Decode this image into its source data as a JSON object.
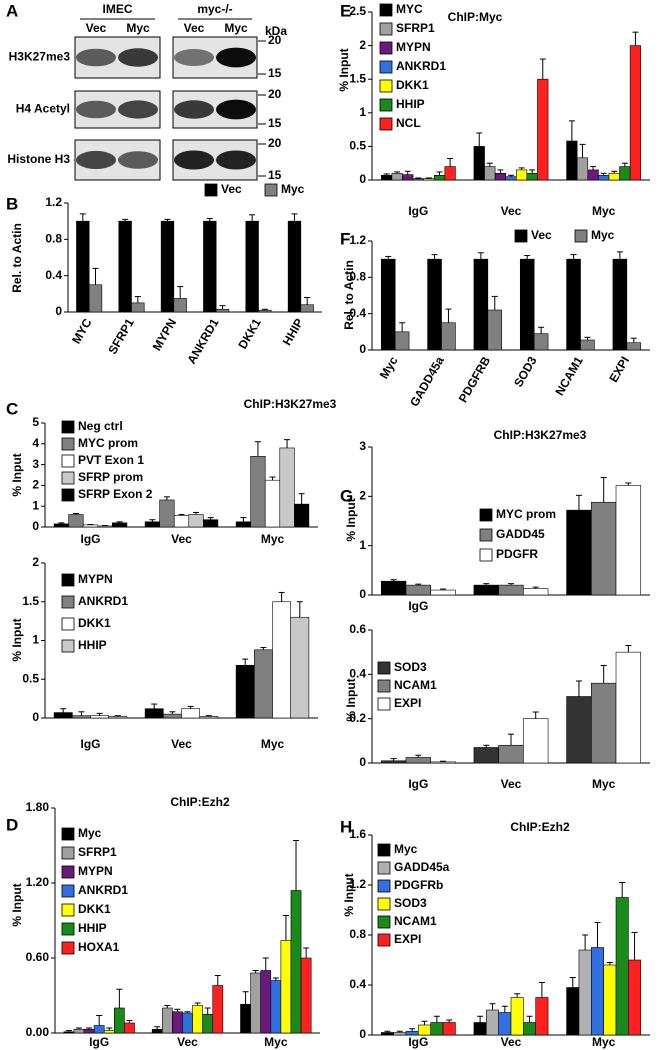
{
  "blot": {
    "label": "A",
    "groups": [
      "IMEC",
      "myc-/-"
    ],
    "lanes": [
      "Vec",
      "Myc",
      "Vec",
      "Myc"
    ],
    "unit": "kDa",
    "rows": [
      {
        "name": "H3K27me3",
        "markers": [
          "20",
          "15"
        ]
      },
      {
        "name": "H4 Acetyl",
        "markers": [
          "20",
          "15"
        ]
      },
      {
        "name": "Histone H3",
        "markers": [
          "20",
          "15"
        ]
      }
    ]
  },
  "chart_data": [
    {
      "type": "bar",
      "label": "B",
      "ylabel": "Rel. to Actin",
      "categories": [
        "MYC",
        "SFRP1",
        "MYPN",
        "ANKRD1",
        "DKK1",
        "HHIP"
      ],
      "ylim": [
        0,
        1.2
      ],
      "yticks": [
        0,
        0.4,
        0.8,
        1.2
      ],
      "legend": "upper right",
      "series": [
        {
          "name": "Vec",
          "color": "#000000",
          "values": [
            1,
            1,
            1,
            1,
            1,
            1
          ],
          "errors": [
            0.08,
            0.02,
            0.02,
            0.03,
            0.07,
            0.08
          ]
        },
        {
          "name": "Myc",
          "color": "#808080",
          "values": [
            0.3,
            0.1,
            0.15,
            0.03,
            0.02,
            0.08
          ],
          "errors": [
            0.18,
            0.07,
            0.13,
            0.04,
            0.01,
            0.08
          ]
        }
      ]
    },
    {
      "type": "bar",
      "label": "C",
      "title": "ChIP:H3K27me3",
      "ylabel": "% Input",
      "categories": [
        "IgG",
        "Vec",
        "Myc"
      ],
      "ylim": [
        0,
        5
      ],
      "yticks": [
        0,
        1,
        2,
        3,
        4,
        5
      ],
      "legend": "upper left",
      "series": [
        {
          "name": "Neg ctrl",
          "color": "#000000",
          "values": [
            0.15,
            0.25,
            0.25
          ],
          "errors": [
            0.05,
            0.1,
            0.2
          ]
        },
        {
          "name": "MYC prom",
          "color": "#808080",
          "values": [
            0.6,
            1.3,
            3.4
          ],
          "errors": [
            0.05,
            0.15,
            0.7
          ]
        },
        {
          "name": "PVT Exon 1",
          "color": "#ffffff",
          "values": [
            0.1,
            0.55,
            2.25
          ],
          "errors": [
            0.02,
            0.05,
            0.15
          ]
        },
        {
          "name": "SFRP prom",
          "color": "#c8c8c8",
          "values": [
            0.05,
            0.6,
            3.8
          ],
          "errors": [
            0.02,
            0.1,
            0.4
          ]
        },
        {
          "name": "SFRP Exon 2",
          "color": "#000000",
          "values": [
            0.2,
            0.35,
            1.1
          ],
          "errors": [
            0.05,
            0.1,
            0.5
          ]
        }
      ]
    },
    {
      "type": "bar",
      "ylabel": "% Input",
      "categories": [
        "IgG",
        "Vec",
        "Myc"
      ],
      "ylim": [
        0,
        2
      ],
      "yticks": [
        0,
        0.5,
        1,
        1.5,
        2
      ],
      "legend": "upper left",
      "series": [
        {
          "name": "MYPN",
          "color": "#000000",
          "values": [
            0.07,
            0.12,
            0.68
          ],
          "errors": [
            0.05,
            0.06,
            0.08
          ]
        },
        {
          "name": "ANKRD1",
          "color": "#808080",
          "values": [
            0.03,
            0.05,
            0.88
          ],
          "errors": [
            0.05,
            0.03,
            0.03
          ]
        },
        {
          "name": "DKK1",
          "color": "#ffffff",
          "values": [
            0.03,
            0.12,
            1.5
          ],
          "errors": [
            0.03,
            0.03,
            0.12
          ]
        },
        {
          "name": "HHIP",
          "color": "#c8c8c8",
          "values": [
            0.02,
            0.02,
            1.3
          ],
          "errors": [
            0.01,
            0.01,
            0.2
          ]
        }
      ]
    },
    {
      "type": "bar",
      "label": "D",
      "title": "ChIP:Ezh2",
      "ylabel": "% Input",
      "categories": [
        "IgG",
        "Vec",
        "Myc"
      ],
      "ylim": [
        0,
        1.8
      ],
      "yticks": [
        {
          "value": 0,
          "label": "0.00"
        },
        {
          "value": 0.6,
          "label": "0.60"
        },
        {
          "value": 1.2,
          "label": "1.20"
        },
        {
          "value": 1.8,
          "label": "1.80"
        }
      ],
      "legend": "upper left",
      "series": [
        {
          "name": "Myc",
          "color": "#000000",
          "values": [
            0.01,
            0.03,
            0.23
          ],
          "errors": [
            0.01,
            0.02,
            0.1
          ]
        },
        {
          "name": "SFRP1",
          "color": "#a0a0a0",
          "values": [
            0.03,
            0.2,
            0.48
          ],
          "errors": [
            0.01,
            0.02,
            0.02
          ]
        },
        {
          "name": "MYPN",
          "color": "#6a1b7a",
          "values": [
            0.03,
            0.17,
            0.5
          ],
          "errors": [
            0.01,
            0.02,
            0.1
          ]
        },
        {
          "name": "ANKRD1",
          "color": "#3070e0",
          "values": [
            0.06,
            0.16,
            0.42
          ],
          "errors": [
            0.08,
            0.01,
            0.02
          ]
        },
        {
          "name": "DKK1",
          "color": "#ffff00",
          "values": [
            0.02,
            0.22,
            0.74
          ],
          "errors": [
            0.02,
            0.02,
            0.2
          ]
        },
        {
          "name": "HHIP",
          "color": "#1a8a1a",
          "values": [
            0.2,
            0.15,
            1.14
          ],
          "errors": [
            0.15,
            0.05,
            0.4
          ]
        },
        {
          "name": "HOXA1",
          "color": "#ff2020",
          "values": [
            0.08,
            0.38,
            0.6
          ],
          "errors": [
            0.02,
            0.08,
            0.08
          ]
        }
      ]
    },
    {
      "type": "bar",
      "label": "E",
      "title": "ChIP:Myc",
      "ylabel": "% Input",
      "categories": [
        "IgG",
        "Vec",
        "Myc"
      ],
      "ylim": [
        0,
        2.5
      ],
      "yticks": [
        0,
        0.5,
        1,
        1.5,
        2,
        2.5
      ],
      "legend": "upper left",
      "series": [
        {
          "name": "MYC",
          "color": "#000000",
          "values": [
            0.07,
            0.5,
            0.58
          ],
          "errors": [
            0.02,
            0.2,
            0.3
          ]
        },
        {
          "name": "SFRP1",
          "color": "#a0a0a0",
          "values": [
            0.1,
            0.2,
            0.33
          ],
          "errors": [
            0.02,
            0.05,
            0.2
          ]
        },
        {
          "name": "MYPN",
          "color": "#6a1b7a",
          "values": [
            0.08,
            0.1,
            0.15
          ],
          "errors": [
            0.05,
            0.05,
            0.05
          ]
        },
        {
          "name": "ANKRD1",
          "color": "#3070e0",
          "values": [
            0.02,
            0.05,
            0.07
          ],
          "errors": [
            0.01,
            0.02,
            0.03
          ]
        },
        {
          "name": "DKK1",
          "color": "#ffff00",
          "values": [
            0.02,
            0.15,
            0.1
          ],
          "errors": [
            0.01,
            0.03,
            0.03
          ]
        },
        {
          "name": "HHIP",
          "color": "#1a8a1a",
          "values": [
            0.07,
            0.1,
            0.2
          ],
          "errors": [
            0.05,
            0.05,
            0.05
          ]
        },
        {
          "name": "NCL",
          "color": "#ff2020",
          "values": [
            0.2,
            1.5,
            2
          ],
          "errors": [
            0.12,
            0.3,
            0.2
          ]
        }
      ]
    },
    {
      "type": "bar",
      "label": "F",
      "ylabel": "Rel. to Actin",
      "categories": [
        "Myc",
        "GADD45a",
        "PDGFRB",
        "SOD3",
        "NCAM1",
        "EXPI"
      ],
      "ylim": [
        0,
        1.2
      ],
      "yticks": [
        0,
        0.4,
        0.8,
        1.2
      ],
      "legend": "upper right",
      "series": [
        {
          "name": "Vec",
          "color": "#000000",
          "values": [
            1,
            1,
            1,
            1,
            1,
            1
          ],
          "errors": [
            0.03,
            0.05,
            0.07,
            0.04,
            0.05,
            0.08
          ]
        },
        {
          "name": "Myc",
          "color": "#808080",
          "values": [
            0.2,
            0.3,
            0.44,
            0.18,
            0.11,
            0.08
          ],
          "errors": [
            0.1,
            0.15,
            0.15,
            0.07,
            0.03,
            0.05
          ]
        }
      ]
    },
    {
      "type": "bar",
      "label": "G",
      "title": "ChIP:H3K27me3",
      "ylabel": "% Input",
      "categories": [
        "IgG",
        null,
        null
      ],
      "ylim": [
        0,
        3
      ],
      "yticks": [
        0,
        1,
        2,
        3
      ],
      "legend": "upper center",
      "series": [
        {
          "name": "MYC prom",
          "color": "#000000",
          "values": [
            0.28,
            0.2,
            1.72
          ],
          "errors": [
            0.03,
            0.03,
            0.3
          ]
        },
        {
          "name": "GADD45",
          "color": "#808080",
          "values": [
            0.2,
            0.2,
            1.88
          ],
          "errors": [
            0.02,
            0.03,
            0.5
          ]
        },
        {
          "name": "PDGFR",
          "color": "#ffffff",
          "values": [
            0.1,
            0.13,
            2.22
          ],
          "errors": [
            0.02,
            0.03,
            0.05
          ]
        }
      ]
    },
    {
      "type": "bar",
      "ylabel": "% Input",
      "categories": [
        "IgG",
        "Vec",
        "Myc"
      ],
      "ylim": [
        0,
        0.6
      ],
      "yticks": [
        0,
        0.2,
        0.4,
        0.6
      ],
      "legend": "upper left",
      "series": [
        {
          "name": "SOD3",
          "color": "#333333",
          "values": [
            0.01,
            0.07,
            0.3
          ],
          "errors": [
            0.01,
            0.01,
            0.07
          ]
        },
        {
          "name": "NCAM1",
          "color": "#808080",
          "values": [
            0.025,
            0.08,
            0.36
          ],
          "errors": [
            0.01,
            0.05,
            0.08
          ]
        },
        {
          "name": "EXPI",
          "color": "#ffffff",
          "values": [
            0.005,
            0.2,
            0.5
          ],
          "errors": [
            0.003,
            0.03,
            0.03
          ]
        }
      ]
    },
    {
      "type": "bar",
      "label": "H",
      "title": "ChIP:Ezh2",
      "ylabel": "% Input",
      "categories": [
        "IgG",
        "Vec",
        "Myc"
      ],
      "ylim": [
        0,
        1.6
      ],
      "yticks": [
        0,
        0.4,
        0.8,
        1.2,
        1.6
      ],
      "legend": "upper left",
      "series": [
        {
          "name": "Myc",
          "color": "#000000",
          "values": [
            0.02,
            0.1,
            0.38
          ],
          "errors": [
            0.01,
            0.05,
            0.08
          ]
        },
        {
          "name": "GADD45a",
          "color": "#b0b0b0",
          "values": [
            0.02,
            0.2,
            0.68
          ],
          "errors": [
            0.01,
            0.05,
            0.12
          ]
        },
        {
          "name": "PDGFRb",
          "color": "#3070e0",
          "values": [
            0.03,
            0.18,
            0.7
          ],
          "errors": [
            0.02,
            0.05,
            0.2
          ]
        },
        {
          "name": "SOD3",
          "color": "#ffff00",
          "values": [
            0.08,
            0.3,
            0.56
          ],
          "errors": [
            0.03,
            0.03,
            0.02
          ]
        },
        {
          "name": "NCAM1",
          "color": "#1a8a1a",
          "values": [
            0.1,
            0.1,
            1.1
          ],
          "errors": [
            0.05,
            0.05,
            0.12
          ]
        },
        {
          "name": "EXPI",
          "color": "#ff2020",
          "values": [
            0.1,
            0.3,
            0.6
          ],
          "errors": [
            0.02,
            0.12,
            0.22
          ]
        }
      ]
    }
  ]
}
